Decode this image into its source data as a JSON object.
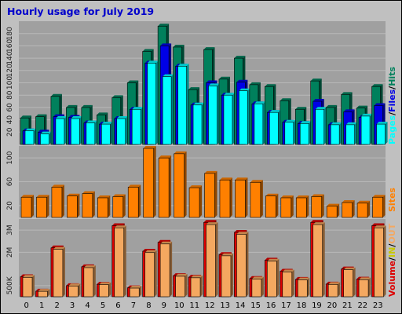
{
  "title": "Hourly usage for July 2019",
  "colors": {
    "frame": "#c0c0c0",
    "panel": "#a0a0a0",
    "grid": "#b8b8b8",
    "title": "#0000cc",
    "hits": "#00805c",
    "files": "#0000e6",
    "pages": "#00ffff",
    "sites": "#ff8000",
    "volume": "#dd0000",
    "out": "#f4a860",
    "in": "#c8c800"
  },
  "legend": {
    "top": [
      "Pages",
      "/",
      "Files",
      "/",
      "Hits"
    ],
    "middle": "Sites",
    "bottom": [
      "Volume",
      "/",
      "IN",
      "/",
      "OUT"
    ]
  },
  "chart_data": [
    {
      "type": "bar",
      "title": "Hourly usage for July 2019",
      "categories": [
        "0",
        "1",
        "2",
        "3",
        "4",
        "5",
        "6",
        "7",
        "8",
        "9",
        "10",
        "11",
        "12",
        "13",
        "14",
        "15",
        "16",
        "17",
        "18",
        "19",
        "20",
        "21",
        "22",
        "23"
      ],
      "ylim": [
        0,
        200
      ],
      "y_ticks": [
        "20",
        "40",
        "60",
        "80",
        "100",
        "120",
        "140",
        "160",
        "180"
      ],
      "series": [
        {
          "name": "Hits",
          "values": [
            43,
            45,
            78,
            60,
            60,
            48,
            76,
            100,
            151,
            192,
            158,
            89,
            154,
            106,
            140,
            97,
            94,
            71,
            57,
            103,
            60,
            81,
            59,
            94
          ]
        },
        {
          "name": "Files",
          "values": [
            22,
            20,
            45,
            44,
            35,
            33,
            42,
            57,
            132,
            160,
            127,
            64,
            100,
            80,
            101,
            66,
            52,
            36,
            34,
            70,
            32,
            53,
            44,
            63
          ]
        },
        {
          "name": "Pages",
          "values": [
            22,
            17,
            42,
            42,
            35,
            33,
            42,
            57,
            132,
            110,
            127,
            64,
            95,
            80,
            87,
            66,
            52,
            36,
            34,
            57,
            32,
            32,
            46,
            33
          ]
        }
      ]
    },
    {
      "type": "bar",
      "categories": [
        "0",
        "1",
        "2",
        "3",
        "4",
        "5",
        "6",
        "7",
        "8",
        "9",
        "10",
        "11",
        "12",
        "13",
        "14",
        "15",
        "16",
        "17",
        "18",
        "19",
        "20",
        "21",
        "22",
        "23"
      ],
      "ylim": [
        0,
        120
      ],
      "y_ticks": [
        "20",
        "60",
        "100"
      ],
      "series": [
        {
          "name": "Sites",
          "values": [
            34,
            34,
            51,
            36,
            40,
            33,
            35,
            51,
            116,
            100,
            107,
            50,
            74,
            63,
            63,
            59,
            36,
            33,
            33,
            35,
            19,
            25,
            24,
            34
          ]
        }
      ]
    },
    {
      "type": "bar",
      "categories": [
        "0",
        "1",
        "2",
        "3",
        "4",
        "5",
        "6",
        "7",
        "8",
        "9",
        "10",
        "11",
        "12",
        "13",
        "14",
        "15",
        "16",
        "17",
        "18",
        "19",
        "20",
        "21",
        "22",
        "23"
      ],
      "ylim": [
        0,
        3500000
      ],
      "y_ticks": [
        "500K",
        "2M",
        "3M"
      ],
      "series": [
        {
          "name": "Volume",
          "values": [
            900000,
            250000,
            2200000,
            500000,
            1350000,
            560000,
            3200000,
            400000,
            2050000,
            2450000,
            950000,
            880000,
            3350000,
            1900000,
            2900000,
            820000,
            1650000,
            1150000,
            780000,
            3350000,
            570000,
            1250000,
            790000,
            3200000
          ]
        }
      ]
    }
  ]
}
